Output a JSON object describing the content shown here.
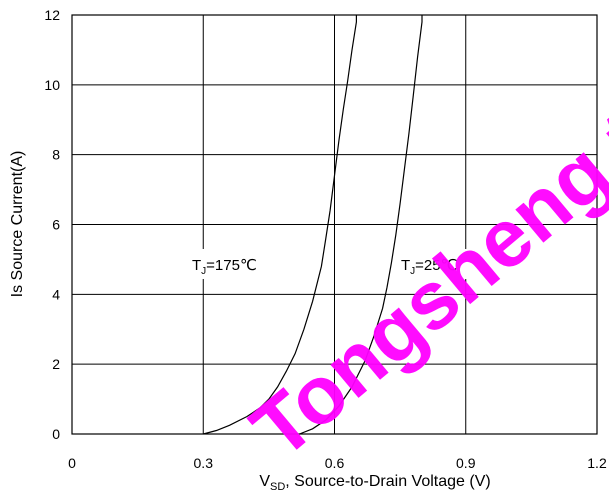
{
  "chart_data": {
    "type": "line",
    "xlabel_prefix": "V",
    "xlabel_sub": "SD",
    "xlabel_rest": ", Source-to-Drain Voltage (V)",
    "ylabel": "Is Source Current(A)",
    "xlim": [
      0,
      1.2
    ],
    "ylim": [
      0,
      12
    ],
    "xticks": [
      0,
      0.3,
      0.6,
      0.9,
      1.2
    ],
    "yticks": [
      0,
      2,
      4,
      6,
      8,
      10,
      12
    ],
    "xtick_labels": [
      "0",
      "0.3",
      "0.6",
      "0.9",
      "1.2"
    ],
    "ytick_labels": [
      "0",
      "2",
      "4",
      "6",
      "8",
      "10",
      "12"
    ],
    "grid": true,
    "series": [
      {
        "label_prefix": "T",
        "label_sub": "J",
        "label_rest": "=175℃",
        "x": [
          0.3,
          0.33,
          0.36,
          0.4,
          0.43,
          0.45,
          0.47,
          0.49,
          0.51,
          0.53,
          0.55,
          0.57,
          0.58,
          0.59,
          0.6,
          0.61,
          0.62,
          0.63,
          0.64,
          0.65,
          0.65
        ],
        "y": [
          0,
          0.1,
          0.25,
          0.5,
          0.75,
          1.0,
          1.35,
          1.8,
          2.3,
          3.0,
          3.8,
          4.8,
          5.6,
          6.4,
          7.4,
          8.4,
          9.3,
          10.1,
          11.0,
          11.8,
          12
        ]
      },
      {
        "label_prefix": "T",
        "label_sub": "J",
        "label_rest": "=25℃",
        "x": [
          0.52,
          0.55,
          0.58,
          0.61,
          0.64,
          0.67,
          0.69,
          0.71,
          0.72,
          0.73,
          0.74,
          0.75,
          0.76,
          0.77,
          0.78,
          0.79,
          0.8,
          0.8
        ],
        "y": [
          0,
          0.15,
          0.4,
          0.8,
          1.35,
          2.1,
          2.8,
          3.6,
          4.2,
          4.9,
          5.7,
          6.6,
          7.6,
          8.6,
          9.7,
          10.8,
          11.8,
          12
        ]
      }
    ]
  },
  "watermark": "Tongsheng tin"
}
